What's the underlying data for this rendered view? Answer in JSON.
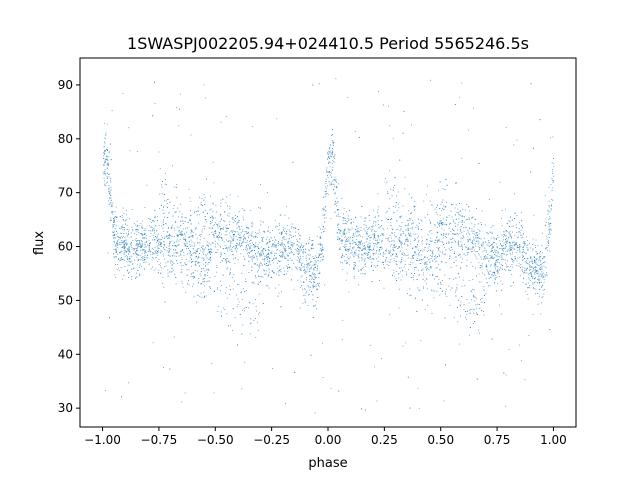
{
  "chart_data": {
    "type": "scatter",
    "title": "1SWASPJ002205.94+024410.5 Period 5565246.5s",
    "xlabel": "phase",
    "ylabel": "flux",
    "xlim": [
      -1.1,
      1.1
    ],
    "ylim": [
      26.5,
      95
    ],
    "xticks": [
      -1.0,
      -0.75,
      -0.5,
      -0.25,
      0.0,
      0.25,
      0.5,
      0.75,
      1.0
    ],
    "xtick_labels": [
      "−1.00",
      "−0.75",
      "−0.50",
      "−0.25",
      "0.00",
      "0.25",
      "0.50",
      "0.75",
      "1.00"
    ],
    "yticks": [
      30,
      40,
      50,
      60,
      70,
      80,
      90
    ],
    "ytick_labels": [
      "30",
      "40",
      "50",
      "60",
      "70",
      "80",
      "90"
    ],
    "grid": false,
    "legend": "none",
    "marker_color": "#1f77b4",
    "series": [
      {
        "phase_range": [
          -1.0,
          1.0
        ],
        "repeats_every": 1.0,
        "profile": {
          "x": [
            0.0,
            0.02,
            0.05,
            0.06,
            0.1,
            0.15,
            0.2,
            0.25,
            0.3,
            0.35,
            0.4,
            0.45,
            0.5,
            0.55,
            0.6,
            0.65,
            0.7,
            0.75,
            0.8,
            0.85,
            0.9,
            0.95,
            0.97,
            1.0
          ],
          "y": [
            75,
            76,
            62,
            61,
            60,
            60,
            61,
            61,
            60,
            62,
            59,
            58,
            62,
            60,
            62,
            61,
            58,
            58,
            60,
            60,
            56,
            55,
            60,
            75
          ],
          "typical_scatter": 5,
          "outlier_range": [
            29,
            92
          ]
        },
        "secondary_branches": [
          {
            "x": [
              0.2,
              0.3,
              0.4,
              0.5,
              0.55,
              0.6,
              0.65,
              0.7
            ],
            "y": [
              62,
              58,
              55,
              53,
              51,
              49,
              49,
              50
            ]
          },
          {
            "x": [
              0.25,
              0.3,
              0.35,
              0.4,
              0.45,
              0.5,
              0.55,
              0.6
            ],
            "y": [
              70,
              68,
              66,
              64,
              66,
              67,
              66,
              63
            ]
          }
        ]
      }
    ]
  }
}
